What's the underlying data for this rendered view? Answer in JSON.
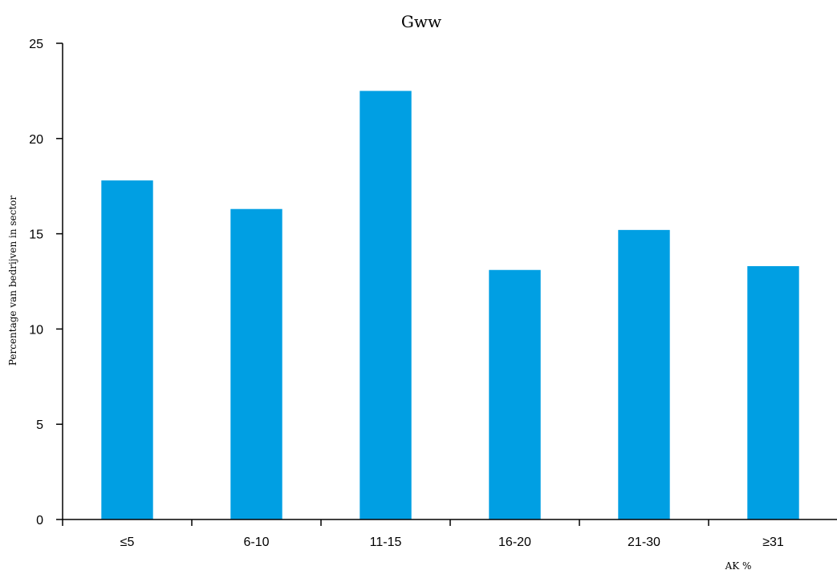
{
  "chart_data": {
    "type": "bar",
    "title": "Gww",
    "xlabel": "AK %",
    "ylabel": "Percentage van bedrijven in sector",
    "categories": [
      "≤5",
      "6-10",
      "11-15",
      "16-20",
      "21-30",
      "≥31"
    ],
    "values": [
      17.8,
      16.3,
      22.5,
      13.1,
      15.2,
      13.3
    ],
    "ylim": [
      0,
      25
    ],
    "yticks": [
      0,
      5,
      10,
      15,
      20,
      25
    ],
    "grid": false,
    "legend": "none",
    "bar_color": "#009fe3"
  }
}
